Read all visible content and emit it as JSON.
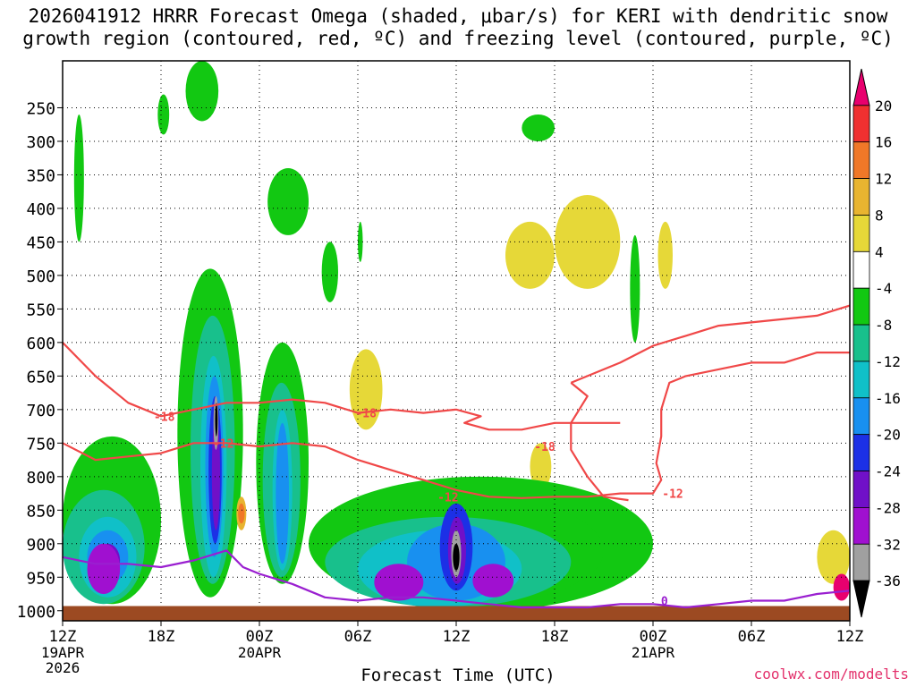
{
  "header": {
    "title_line1": "2026041912 HRRR Forecast Omega (shaded, μbar/s) for KERI with dendritic snow",
    "title_line2": "growth region (contoured, red, ºC) and freezing level (contoured, purple, ºC)"
  },
  "footer": {
    "x_axis_title": "Forecast Time (UTC)",
    "credit": "coolwx.com/modelts"
  },
  "colors": {
    "ground": "#9c4a22",
    "red_contour": "#f04848",
    "purple_contour": "#9a1fd0"
  },
  "chart_data": {
    "type": "heatmap",
    "title": "Omega (shaded, μbar/s) with dendritic snow growth region (red) and freezing level (purple)",
    "station": "KERI",
    "run": "2026041912",
    "x_unit": "forecast hour",
    "x_range": [
      0,
      48
    ],
    "y_unit": "hPa",
    "y_range": [
      1015,
      180
    ],
    "y_ticks": [
      250,
      300,
      350,
      400,
      450,
      500,
      550,
      600,
      650,
      700,
      750,
      800,
      850,
      900,
      950,
      1000
    ],
    "x_ticks": [
      {
        "hour": 0,
        "label": "12Z",
        "sub": [
          "19APR",
          "2026"
        ]
      },
      {
        "hour": 6,
        "label": "18Z",
        "sub": []
      },
      {
        "hour": 12,
        "label": "00Z",
        "sub": [
          "20APR"
        ]
      },
      {
        "hour": 18,
        "label": "06Z",
        "sub": []
      },
      {
        "hour": 24,
        "label": "12Z",
        "sub": []
      },
      {
        "hour": 30,
        "label": "18Z",
        "sub": []
      },
      {
        "hour": 36,
        "label": "00Z",
        "sub": [
          "21APR"
        ]
      },
      {
        "hour": 42,
        "label": "06Z",
        "sub": []
      },
      {
        "hour": 48,
        "label": "12Z",
        "sub": []
      }
    ],
    "colorbar": {
      "levels": [
        "20",
        "16",
        "12",
        "8",
        "4",
        "-4",
        "-8",
        "-12",
        "-16",
        "-20",
        "-24",
        "-28",
        "-32",
        "-36"
      ],
      "colors": [
        "#e8006e",
        "#f03030",
        "#f07828",
        "#e8b430",
        "#e6d838",
        "#ffffff",
        "#12c812",
        "#18c08c",
        "#10c0c8",
        "#1890f0",
        "#1c30e6",
        "#7010c8",
        "#a010d0",
        "#a0a0a0",
        "#000000"
      ]
    },
    "regions": [
      {
        "level": 4,
        "x": [
          0.6,
          1.5
        ],
        "p": [
          460,
          560
        ]
      },
      {
        "level": 4,
        "x": [
          3,
          7
        ],
        "p": [
          310,
          500
        ]
      },
      {
        "level": 4,
        "x": [
          6,
          11
        ],
        "p": [
          330,
          460
        ]
      },
      {
        "level": 4,
        "x": [
          8,
          13
        ],
        "p": [
          300,
          430
        ]
      },
      {
        "level": 4,
        "x": [
          12.3,
          13.8
        ],
        "p": [
          270,
          340
        ]
      },
      {
        "level": 4,
        "x": [
          14,
          20
        ],
        "p": [
          410,
          560
        ]
      },
      {
        "level": 4,
        "x": [
          19.5,
          25
        ],
        "p": [
          350,
          580
        ]
      },
      {
        "level": 4,
        "x": [
          24,
          34
        ],
        "p": [
          330,
          620
        ]
      },
      {
        "level": 4,
        "x": [
          25.5,
          27
        ],
        "p": [
          200,
          240
        ]
      },
      {
        "level": 4,
        "x": [
          27,
          29
        ],
        "p": [
          180,
          230
        ]
      },
      {
        "level": 4,
        "x": [
          33,
          35.5
        ],
        "p": [
          380,
          560
        ]
      },
      {
        "level": 4,
        "x": [
          35.5,
          40
        ],
        "p": [
          300,
          600
        ]
      },
      {
        "level": 4,
        "x": [
          39,
          40.5
        ],
        "p": [
          270,
          330
        ]
      },
      {
        "level": 4,
        "x": [
          40.5,
          43.5
        ],
        "p": [
          260,
          380
        ]
      },
      {
        "level": 4,
        "x": [
          44,
          46
        ],
        "p": [
          330,
          420
        ]
      },
      {
        "level": 4,
        "x": [
          45.5,
          47.5
        ],
        "p": [
          250,
          370
        ]
      },
      {
        "level": 4,
        "x": [
          10,
          11.5
        ],
        "p": [
          790,
          860
        ]
      },
      {
        "level": 4,
        "x": [
          14,
          25
        ],
        "p": [
          610,
          800
        ]
      },
      {
        "level": 4,
        "x": [
          25,
          32
        ],
        "p": [
          700,
          830
        ]
      },
      {
        "level": 4,
        "x": [
          30,
          36
        ],
        "p": [
          560,
          700
        ]
      },
      {
        "level": 4,
        "x": [
          37.5,
          40
        ],
        "p": [
          560,
          780
        ]
      },
      {
        "level": 4,
        "x": [
          39,
          48
        ],
        "p": [
          800,
          960
        ]
      },
      {
        "level": 4,
        "x": [
          42,
          44
        ],
        "p": [
          850,
          940
        ]
      },
      {
        "level": 8,
        "x": [
          30,
          34
        ],
        "p": [
          380,
          520
        ]
      },
      {
        "level": 8,
        "x": [
          27,
          30
        ],
        "p": [
          420,
          520
        ]
      },
      {
        "level": 8,
        "x": [
          17.5,
          19.5
        ],
        "p": [
          610,
          730
        ]
      },
      {
        "level": 8,
        "x": [
          28.5,
          29.8
        ],
        "p": [
          750,
          820
        ]
      },
      {
        "level": 8,
        "x": [
          46,
          48
        ],
        "p": [
          880,
          960
        ]
      },
      {
        "level": 8,
        "x": [
          36.3,
          37.2
        ],
        "p": [
          420,
          520
        ]
      },
      {
        "level": -4,
        "x": [
          0.7,
          1.3
        ],
        "p": [
          260,
          450
        ]
      },
      {
        "level": -4,
        "x": [
          5.8,
          6.5
        ],
        "p": [
          230,
          290
        ]
      },
      {
        "level": -4,
        "x": [
          7.5,
          9.5
        ],
        "p": [
          180,
          270
        ]
      },
      {
        "level": -4,
        "x": [
          12.5,
          15
        ],
        "p": [
          340,
          440
        ]
      },
      {
        "level": -4,
        "x": [
          15.8,
          16.8
        ],
        "p": [
          450,
          540
        ]
      },
      {
        "level": -4,
        "x": [
          18,
          18.3
        ],
        "p": [
          420,
          480
        ]
      },
      {
        "level": -4,
        "x": [
          28,
          30
        ],
        "p": [
          260,
          300
        ]
      },
      {
        "level": -4,
        "x": [
          34.6,
          35.2
        ],
        "p": [
          440,
          600
        ]
      },
      {
        "level": -4,
        "x": [
          7,
          11
        ],
        "p": [
          490,
          980
        ]
      },
      {
        "level": -4,
        "x": [
          11.8,
          15
        ],
        "p": [
          600,
          960
        ]
      },
      {
        "level": -4,
        "x": [
          0,
          6
        ],
        "p": [
          740,
          990
        ]
      },
      {
        "level": -4,
        "x": [
          15,
          36
        ],
        "p": [
          800,
          1000
        ]
      },
      {
        "level": -4,
        "x": [
          17,
          33
        ],
        "p": [
          830,
          990
        ]
      },
      {
        "level": -8,
        "x": [
          0,
          5
        ],
        "p": [
          820,
          990
        ]
      },
      {
        "level": -8,
        "x": [
          7.8,
          10.5
        ],
        "p": [
          560,
          960
        ]
      },
      {
        "level": -8,
        "x": [
          12.2,
          14.5
        ],
        "p": [
          660,
          950
        ]
      },
      {
        "level": -8,
        "x": [
          16,
          31
        ],
        "p": [
          860,
          995
        ]
      },
      {
        "level": -12,
        "x": [
          1,
          4.5
        ],
        "p": [
          860,
          980
        ]
      },
      {
        "level": -12,
        "x": [
          8.4,
          10
        ],
        "p": [
          620,
          950
        ]
      },
      {
        "level": -12,
        "x": [
          12.8,
          14
        ],
        "p": [
          700,
          940
        ]
      },
      {
        "level": -12,
        "x": [
          18,
          28
        ],
        "p": [
          880,
          995
        ]
      },
      {
        "level": -16,
        "x": [
          1.5,
          4
        ],
        "p": [
          880,
          960
        ]
      },
      {
        "level": -16,
        "x": [
          8.7,
          9.8
        ],
        "p": [
          650,
          920
        ]
      },
      {
        "level": -16,
        "x": [
          13,
          13.8
        ],
        "p": [
          720,
          930
        ]
      },
      {
        "level": -16,
        "x": [
          21,
          27
        ],
        "p": [
          870,
          985
        ]
      },
      {
        "level": -20,
        "x": [
          8.9,
          9.7
        ],
        "p": [
          680,
          900
        ]
      },
      {
        "level": -20,
        "x": [
          23,
          25
        ],
        "p": [
          840,
          970
        ]
      },
      {
        "level": -24,
        "x": [
          2,
          3.5
        ],
        "p": [
          900,
          950
        ]
      },
      {
        "level": -24,
        "x": [
          9.1,
          9.6
        ],
        "p": [
          710,
          880
        ]
      },
      {
        "level": -24,
        "x": [
          23.5,
          24.6
        ],
        "p": [
          860,
          960
        ]
      },
      {
        "level": -28,
        "x": [
          1.5,
          3.5
        ],
        "p": [
          900,
          975
        ]
      },
      {
        "level": -28,
        "x": [
          19,
          22
        ],
        "p": [
          930,
          985
        ]
      },
      {
        "level": -28,
        "x": [
          25,
          27.5
        ],
        "p": [
          930,
          980
        ]
      },
      {
        "level": -32,
        "x": [
          9.2,
          9.5
        ],
        "p": [
          680,
          760
        ]
      },
      {
        "level": -32,
        "x": [
          23.7,
          24.3
        ],
        "p": [
          880,
          950
        ]
      },
      {
        "level": -36,
        "x": [
          9.3,
          9.45
        ],
        "p": [
          690,
          740
        ]
      },
      {
        "level": -36,
        "x": [
          23.8,
          24.2
        ],
        "p": [
          900,
          940
        ]
      },
      {
        "level": 12,
        "x": [
          10.6,
          11.2
        ],
        "p": [
          830,
          880
        ]
      },
      {
        "level": 16,
        "x": [
          10.7,
          11.1
        ],
        "p": [
          840,
          870
        ]
      },
      {
        "level": 20,
        "x": [
          47,
          48
        ],
        "p": [
          945,
          985
        ]
      }
    ],
    "contours": [
      {
        "color": "red",
        "label": "-18",
        "label_at": [
          6.2,
          710
        ],
        "points": [
          [
            0,
            600
          ],
          [
            2,
            650
          ],
          [
            4,
            690
          ],
          [
            6,
            710
          ],
          [
            8,
            700
          ],
          [
            10,
            690
          ],
          [
            12,
            690
          ],
          [
            14,
            685
          ],
          [
            16,
            690
          ],
          [
            18,
            705
          ],
          [
            20,
            700
          ],
          [
            22,
            705
          ],
          [
            24,
            700
          ],
          [
            25.5,
            710
          ],
          [
            24.5,
            720
          ],
          [
            26,
            730
          ],
          [
            28,
            730
          ],
          [
            30,
            720
          ],
          [
            32,
            720
          ],
          [
            33,
            720
          ],
          [
            34,
            720
          ]
        ]
      },
      {
        "color": "red",
        "label": "-18",
        "label_at": [
          18.5,
          705
        ],
        "points": []
      },
      {
        "color": "red",
        "label": "-12",
        "label_at": [
          9.8,
          750
        ],
        "points": [
          [
            0,
            750
          ],
          [
            2,
            775
          ],
          [
            4,
            770
          ],
          [
            6,
            765
          ],
          [
            8,
            750
          ],
          [
            10,
            750
          ],
          [
            12,
            755
          ],
          [
            14,
            750
          ],
          [
            16,
            755
          ],
          [
            18,
            775
          ],
          [
            20,
            790
          ],
          [
            22,
            805
          ],
          [
            24,
            820
          ],
          [
            26,
            830
          ],
          [
            28,
            832
          ],
          [
            30,
            830
          ],
          [
            32,
            830
          ],
          [
            34,
            825
          ],
          [
            36,
            825
          ],
          [
            36.5,
            805
          ],
          [
            36.2,
            780
          ],
          [
            36.5,
            740
          ],
          [
            36.5,
            700
          ],
          [
            37,
            660
          ],
          [
            38,
            650
          ],
          [
            40,
            640
          ],
          [
            42,
            630
          ],
          [
            44,
            630
          ],
          [
            46,
            615
          ],
          [
            48,
            615
          ]
        ]
      },
      {
        "color": "red",
        "label": "-12",
        "label_at": [
          23.5,
          830
        ],
        "points": []
      },
      {
        "color": "red",
        "label": "-12",
        "label_at": [
          37.2,
          825
        ],
        "points": []
      },
      {
        "color": "red",
        "label": "-18",
        "label_at": [
          29.4,
          755
        ],
        "points": []
      },
      {
        "color": "red",
        "label": "",
        "label_at": null,
        "points": [
          [
            31,
            660
          ],
          [
            32,
            680
          ],
          [
            31,
            720
          ],
          [
            31,
            760
          ],
          [
            32,
            800
          ],
          [
            33,
            830
          ],
          [
            34.5,
            835
          ]
        ]
      },
      {
        "color": "red",
        "label": "",
        "label_at": null,
        "points": [
          [
            31,
            660
          ],
          [
            34,
            630
          ],
          [
            36,
            605
          ],
          [
            38,
            590
          ],
          [
            40,
            575
          ],
          [
            42,
            570
          ],
          [
            44,
            565
          ],
          [
            46,
            560
          ],
          [
            48,
            545
          ]
        ]
      },
      {
        "color": "purple",
        "label": "0",
        "label_at": [
          36.7,
          985
        ],
        "points": [
          [
            0,
            920
          ],
          [
            2,
            930
          ],
          [
            4,
            930
          ],
          [
            6,
            935
          ],
          [
            8,
            925
          ],
          [
            10,
            910
          ],
          [
            11,
            935
          ],
          [
            12,
            945
          ],
          [
            14,
            960
          ],
          [
            16,
            980
          ],
          [
            18,
            985
          ],
          [
            20,
            980
          ],
          [
            22,
            980
          ],
          [
            24,
            985
          ],
          [
            26,
            990
          ],
          [
            28,
            995
          ],
          [
            30,
            995
          ],
          [
            32,
            995
          ],
          [
            34,
            990
          ],
          [
            36,
            990
          ],
          [
            38,
            995
          ],
          [
            40,
            990
          ],
          [
            42,
            985
          ],
          [
            44,
            985
          ],
          [
            46,
            975
          ],
          [
            48,
            970
          ]
        ]
      }
    ]
  }
}
